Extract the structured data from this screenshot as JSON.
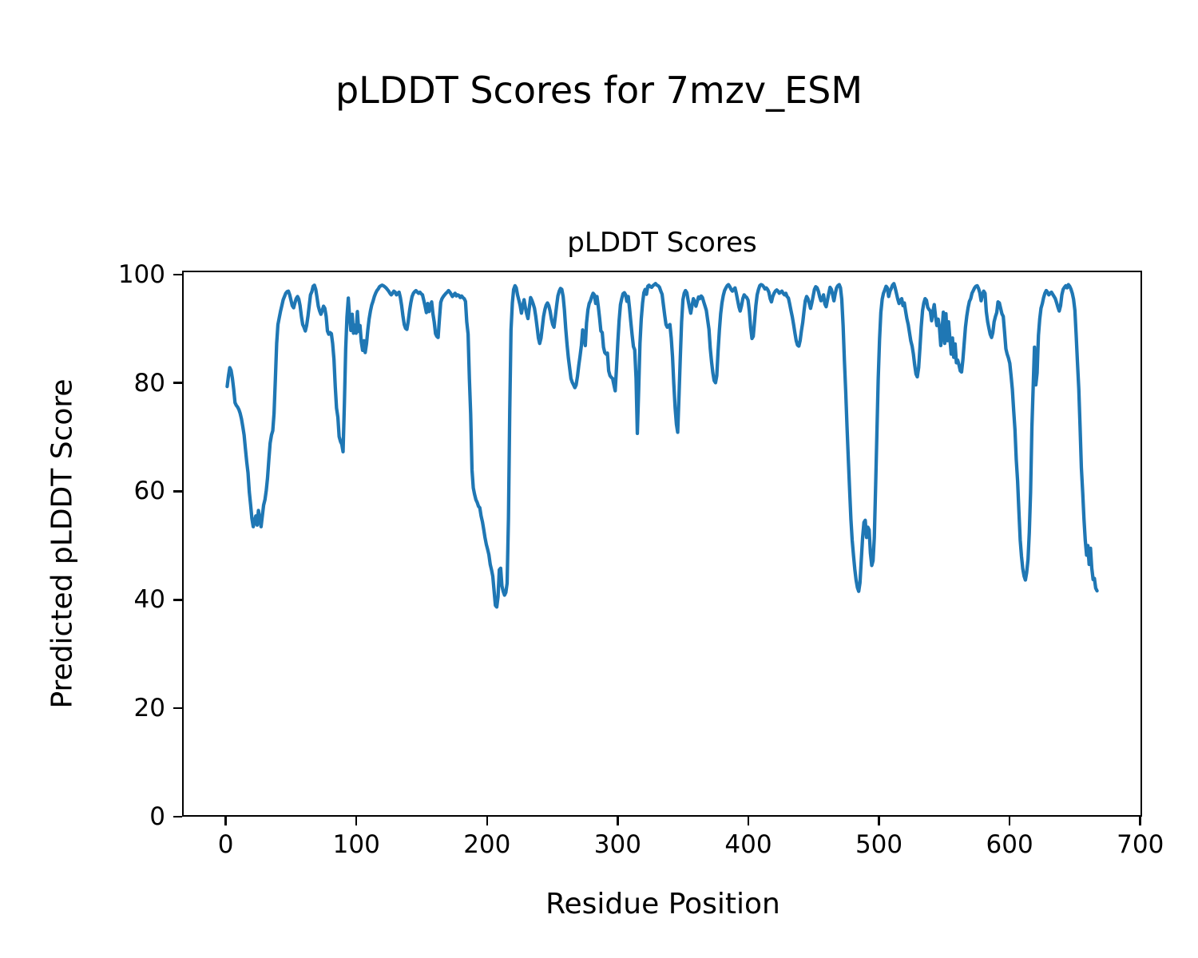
{
  "figure": {
    "suptitle": "pLDDT Scores for 7mzv_ESM",
    "background": "#ffffff",
    "text_color": "#000000"
  },
  "chart_data": {
    "type": "line",
    "title": "pLDDT Scores",
    "xlabel": "Residue Position",
    "ylabel": "Predicted pLDDT Score",
    "xlim": [
      -33.4,
      701.4
    ],
    "ylim": [
      0,
      100.7
    ],
    "xticks": [
      0,
      100,
      200,
      300,
      400,
      500,
      600,
      700
    ],
    "yticks": [
      0,
      20,
      40,
      60,
      80,
      100
    ],
    "grid": false,
    "legend": null,
    "line_color": "#1f77b4",
    "line_width": 4.3,
    "series": [
      {
        "name": "pLDDT",
        "color": "#1f77b4",
        "x_start": 0,
        "x_step": 1,
        "values": [
          79.5,
          81.5,
          83,
          82.5,
          81,
          79,
          76.5,
          76,
          75.7,
          75.2,
          74.5,
          73.5,
          72,
          70.5,
          68,
          65.5,
          63.5,
          60,
          57.5,
          55,
          53.5,
          54.5,
          55.5,
          53.8,
          56.5,
          55,
          53.5,
          55.5,
          57.5,
          58.5,
          60.2,
          62.5,
          66,
          69,
          70.5,
          71.3,
          74.5,
          81,
          87.5,
          91,
          92.3,
          93.5,
          94.5,
          95.6,
          96.2,
          96.8,
          97.1,
          97.2,
          96.5,
          95.5,
          94.5,
          94.1,
          95,
          95.8,
          96.2,
          95.7,
          94.5,
          92.5,
          91,
          90.5,
          89.8,
          90.8,
          92.5,
          94.5,
          96.5,
          97.1,
          98.1,
          98.3,
          97.5,
          96,
          94.4,
          93.5,
          92.9,
          93.6,
          94.4,
          94,
          92.5,
          89.8,
          89.2,
          89.5,
          89.3,
          87.5,
          84.5,
          79.5,
          75.5,
          73.8,
          70.2,
          69.3,
          68.8,
          67.4,
          76.4,
          86.4,
          92.4,
          95.9,
          92.5,
          89.9,
          92.9,
          89.4,
          90.9,
          89.4,
          93.4,
          89.7,
          90.8,
          87.8,
          86.2,
          88,
          85.8,
          87.5,
          90,
          92,
          93.5,
          94.6,
          95.3,
          96.2,
          96.8,
          97.3,
          97.6,
          98,
          98.2,
          98.3,
          98.2,
          98,
          97.8,
          97.5,
          97.2,
          96.8,
          96.5,
          96.8,
          97.2,
          97,
          96.5,
          96.8,
          97,
          96,
          94.5,
          92.5,
          91,
          90.3,
          90.1,
          91.5,
          93.5,
          95,
          96.2,
          96.8,
          97.1,
          97.3,
          97,
          96.8,
          97,
          96.7,
          96.5,
          95.5,
          94.4,
          93.2,
          94.9,
          93.4,
          94.5,
          95.2,
          93,
          91.5,
          89.3,
          88.8,
          88.6,
          92.1,
          95.1,
          95.8,
          96.2,
          96.5,
          96.8,
          97,
          97.3,
          97,
          96.6,
          96.2,
          96.5,
          96.8,
          96.3,
          96.5,
          96.4,
          96,
          96.3,
          96,
          95.8,
          95.3,
          91.5,
          89.2,
          81,
          74.5,
          64,
          60.7,
          59.5,
          58.5,
          58,
          57.3,
          57,
          55.5,
          54.4,
          53,
          51.5,
          50.2,
          49.3,
          48.3,
          46.5,
          45.5,
          44.3,
          41.5,
          38.9,
          38.6,
          40.5,
          45.5,
          45.8,
          42.5,
          41.5,
          40.8,
          41.3,
          43,
          55,
          75,
          90,
          95,
          97.5,
          98.2,
          97.8,
          96.5,
          95.5,
          94.5,
          93.1,
          94.5,
          95.6,
          94.2,
          93,
          92.1,
          94,
          96,
          95.5,
          94.8,
          94,
          92.5,
          90.5,
          88.5,
          87.5,
          88.5,
          90.5,
          92.5,
          93.8,
          94.6,
          95,
          94.5,
          93.5,
          92,
          91,
          90.5,
          92.5,
          94.5,
          96.3,
          97.2,
          97.7,
          97.5,
          96.2,
          93.7,
          90.3,
          87.3,
          84.9,
          82.9,
          81,
          80.3,
          79.8,
          79.3,
          79.8,
          81.4,
          83.4,
          85.1,
          87.1,
          90,
          88.8,
          87.1,
          91.3,
          93.7,
          94.9,
          95.4,
          96.2,
          96.8,
          96.5,
          94.9,
          96.2,
          94.4,
          92.2,
          89.8,
          89.5,
          86.8,
          85.8,
          85.5,
          85.7,
          82.4,
          81.5,
          81.2,
          81,
          79.8,
          78.7,
          82.9,
          87.8,
          91.7,
          94.7,
          95.8,
          96.7,
          96.9,
          96.5,
          95.3,
          96.2,
          94,
          91.5,
          89,
          86.9,
          86.3,
          81,
          70.8,
          79,
          87.5,
          92,
          95,
          96.9,
          97.5,
          96.6,
          98.1,
          98.3,
          98,
          97.9,
          98.2,
          98.4,
          98.6,
          98.3,
          98.2,
          97.9,
          97.2,
          96.6,
          94.7,
          92.7,
          91,
          90.5,
          90.8,
          91,
          88.5,
          85,
          80,
          75.5,
          72.5,
          71,
          78,
          85,
          91.5,
          95.6,
          96.8,
          97.3,
          96.9,
          95.5,
          94.2,
          93.1,
          94.5,
          95.8,
          95.2,
          94.4,
          95.3,
          96.1,
          95.8,
          96.3,
          96,
          95.2,
          94.4,
          93.6,
          91.8,
          90.1,
          86.6,
          84,
          82,
          80.6,
          80.2,
          81.5,
          86,
          90,
          93,
          95,
          96.4,
          97.3,
          97.8,
          98.2,
          98.4,
          98,
          97.5,
          97.2,
          97.5,
          97.8,
          96.8,
          95.5,
          94.3,
          93.5,
          94.5,
          95.8,
          96.5,
          96.2,
          96,
          95.5,
          93.5,
          90.5,
          88.4,
          88.8,
          91.5,
          94.5,
          96.5,
          97.5,
          98.2,
          98.4,
          98.3,
          98,
          97.6,
          97.8,
          97.5,
          97,
          95.8,
          95.2,
          96.2,
          96.8,
          97.2,
          97.4,
          97.2,
          96.8,
          97,
          97.2,
          96.8,
          96.5,
          96.8,
          96.2,
          95.9,
          94.8,
          93.6,
          92.4,
          91,
          89.4,
          88,
          87.2,
          87,
          88,
          89.8,
          91.4,
          93.5,
          95.4,
          96.2,
          95.8,
          95,
          94,
          95,
          96.3,
          97.5,
          98,
          97.8,
          97.2,
          96.2,
          95.4,
          95.8,
          96.5,
          94.8,
          94.3,
          95.5,
          96.8,
          97.9,
          97.5,
          96.5,
          95.4,
          96.8,
          97.8,
          98.2,
          98.4,
          97.8,
          95.7,
          90.8,
          84.4,
          78.5,
          72.1,
          66.2,
          60.3,
          54.9,
          51,
          48.1,
          45.6,
          43.6,
          42.2,
          41.5,
          43.1,
          47.5,
          51.5,
          54.3,
          54.7,
          51.5,
          53.4,
          52.9,
          48.6,
          46.3,
          47.2,
          51.5,
          61.3,
          71.1,
          80.9,
          88.3,
          93.2,
          95.7,
          96.8,
          97.4,
          98.1,
          97.8,
          96.2,
          97.2,
          97.7,
          98.3,
          98.6,
          97.8,
          96.8,
          95.7,
          94.9,
          95.5,
          95.8,
          94.5,
          95,
          93.5,
          92.1,
          91,
          89.5,
          88,
          87,
          85.5,
          83.5,
          81.8,
          81.3,
          83,
          86.6,
          90.5,
          93.6,
          95,
          95.8,
          95.5,
          94.2,
          93.8,
          93.5,
          91.7,
          93.5,
          94.7,
          92.5,
          90.8,
          92,
          90.5,
          87.1,
          90,
          93.3,
          87.5,
          93,
          88,
          91.5,
          88.5,
          85.5,
          88.5,
          84.9,
          87.4,
          83.9,
          84.4,
          83.5,
          82.4,
          82.2,
          84.5,
          87.5,
          90.5,
          92.6,
          94.1,
          95.3,
          95.8,
          96.8,
          97.3,
          97.8,
          98.1,
          98.2,
          97.7,
          96.9,
          95.4,
          96.5,
          97.2,
          96.8,
          93.4,
          91.5,
          90.3,
          89.2,
          88.6,
          89.5,
          91.5,
          92.5,
          93.2,
          95.2,
          95,
          94,
          93,
          92.5,
          89.7,
          86.5,
          85.5,
          84.8,
          83.8,
          81.5,
          79,
          75,
          71.5,
          66,
          62,
          56.5,
          51,
          48,
          45.7,
          44.3,
          43.6,
          45,
          47.4,
          52.4,
          59.8,
          72.1,
          79.5,
          86.8,
          79.8,
          82,
          89,
          92,
          94,
          94.9,
          96,
          96.8,
          97.3,
          97,
          96.5,
          96.8,
          97,
          96.6,
          96.2,
          95.8,
          95,
          94.2,
          93.5,
          94.5,
          96.5,
          97.5,
          97.9,
          98.2,
          97.8,
          98.4,
          98.1,
          97.6,
          96.8,
          95.7,
          93.6,
          89,
          84,
          79,
          72,
          64.5,
          59.8,
          54.9,
          51,
          48.2,
          50,
          46.5,
          49.5,
          45.8,
          43.7,
          43.9,
          42.1,
          41.6
        ]
      }
    ]
  }
}
